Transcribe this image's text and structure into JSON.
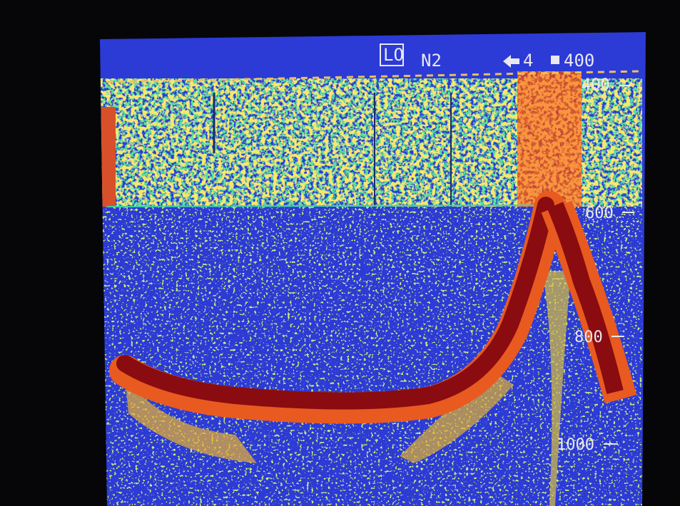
{
  "header": {
    "mode": "LO",
    "noise": "N2",
    "shift": "4",
    "range": "400"
  },
  "depth_scale": [
    "400",
    "600",
    "800",
    "1000"
  ]
}
